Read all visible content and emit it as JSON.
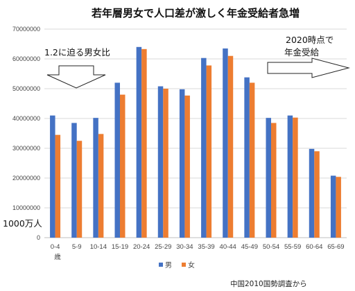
{
  "chart_data": {
    "type": "bar",
    "title": "若年層男女で人口差が激しく年金受給者急増",
    "ylim": [
      0,
      70000000
    ],
    "yticks": [
      "70000000",
      "60000000",
      "50000000",
      "40000000",
      "30000000",
      "20000000",
      "10000000",
      "0"
    ],
    "ylabel": "1000万人",
    "categories": [
      "0-4",
      "5-9",
      "10-14",
      "15-19",
      "20-24",
      "25-29",
      "30-34",
      "35-39",
      "40-44",
      "45-49",
      "50-54",
      "55-59",
      "60-64",
      "65-69"
    ],
    "xunit": "歳",
    "grid": true,
    "legend_position": "bottom",
    "series": [
      {
        "name": "男",
        "color": "#4472c4",
        "values": [
          41000000,
          38500000,
          40200000,
          52000000,
          64000000,
          50800000,
          49800000,
          60300000,
          63500000,
          53800000,
          40200000,
          41000000,
          29800000,
          20800000
        ]
      },
      {
        "name": "女",
        "color": "#ed7d31",
        "values": [
          34500000,
          32500000,
          34800000,
          48000000,
          63300000,
          50000000,
          47700000,
          57800000,
          61000000,
          52000000,
          38500000,
          40300000,
          29000000,
          20400000
        ]
      }
    ],
    "annotations": {
      "left_text": "1.2に迫る男女比",
      "right_text_line1": "2020時点で",
      "right_text_line2": "年金受給"
    },
    "source": "中国2010国勢調査から"
  }
}
